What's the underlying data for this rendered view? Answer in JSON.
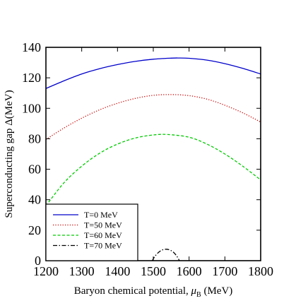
{
  "chart_data": {
    "type": "line",
    "xlabel_main": "Baryon chemical potential, ",
    "xlabel_mu": "μ",
    "xlabel_sub": "B",
    "xlabel_unit": " (MeV)",
    "ylabel": "Superconducting gap Δ(MeV)",
    "xlim": [
      1200,
      1800
    ],
    "ylim": [
      0,
      140
    ],
    "x_ticks": [
      1200,
      1300,
      1400,
      1500,
      1600,
      1700,
      1800
    ],
    "y_ticks": [
      0,
      20,
      40,
      60,
      80,
      100,
      120,
      140
    ],
    "legend_position": "bottom-left",
    "grid": false,
    "series": [
      {
        "name": "T=0 MeV",
        "color": "#0000cc",
        "dash": "solid",
        "x": [
          1200,
          1250,
          1300,
          1350,
          1400,
          1450,
          1500,
          1550,
          1570,
          1600,
          1650,
          1700,
          1750,
          1800
        ],
        "y": [
          113,
          118,
          122.5,
          126,
          128.7,
          130.8,
          132.2,
          132.9,
          133,
          132.8,
          131.6,
          129.3,
          126.2,
          122.5
        ]
      },
      {
        "name": "T=50 MeV",
        "color": "#cc0000",
        "dash": "dotted",
        "x": [
          1200,
          1250,
          1300,
          1350,
          1400,
          1450,
          1500,
          1550,
          1600,
          1650,
          1700,
          1750,
          1800
        ],
        "y": [
          79.5,
          87,
          93.5,
          99,
          103.3,
          106.5,
          108.5,
          109,
          108.3,
          106,
          102,
          97,
          91
        ]
      },
      {
        "name": "T=60 MeV",
        "color": "#00cc00",
        "dash": "dashed",
        "x": [
          1200,
          1250,
          1300,
          1350,
          1400,
          1450,
          1500,
          1540,
          1600,
          1650,
          1700,
          1750,
          1800
        ],
        "y": [
          36,
          51,
          62,
          70.5,
          76.5,
          80.5,
          82.5,
          82.8,
          81,
          76.5,
          70,
          62,
          53
        ]
      },
      {
        "name": "T=70 MeV",
        "color": "#000000",
        "dash": "dashdot",
        "x": [
          1497,
          1505,
          1515,
          1525,
          1535,
          1545,
          1555,
          1565,
          1573
        ],
        "y": [
          0,
          3,
          5.5,
          7,
          7.5,
          7.1,
          5.8,
          3.2,
          0
        ]
      }
    ]
  }
}
